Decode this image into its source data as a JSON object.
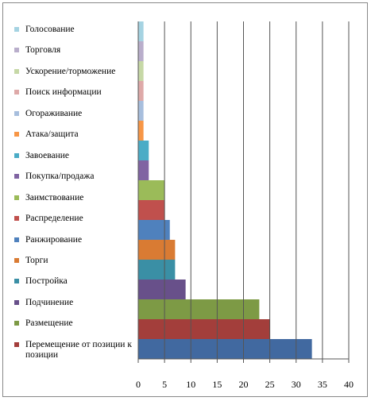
{
  "chart_data": {
    "type": "bar",
    "orientation": "horizontal",
    "bars": [
      {
        "name": "Голосование",
        "color": "#A5D3E2",
        "value": 1
      },
      {
        "name": "Торговля",
        "color": "#B9AECB",
        "value": 1
      },
      {
        "name": "Ускорение/торможение",
        "color": "#C6D8A6",
        "value": 1
      },
      {
        "name": "Поиск информации",
        "color": "#DEA9A8",
        "value": 1
      },
      {
        "name": "Огораживание",
        "color": "#A7BEDD",
        "value": 1
      },
      {
        "name": "Атака/защита",
        "color": "#F79646",
        "value": 1
      },
      {
        "name": "Завоевание",
        "color": "#4BACC6",
        "value": 2
      },
      {
        "name": "Покупка/продажа",
        "color": "#8064A2",
        "value": 2
      },
      {
        "name": "Заимствование",
        "color": "#9BBB59",
        "value": 5
      },
      {
        "name": "Распределение",
        "color": "#C0504D",
        "value": 5
      },
      {
        "name": "Ранжирование",
        "color": "#4F81BD",
        "value": 6
      },
      {
        "name": "Торги",
        "color": "#D97B33",
        "value": 7
      },
      {
        "name": "Постройка",
        "color": "#3A8FA5",
        "value": 7
      },
      {
        "name": "Подчинение",
        "color": "#68508A",
        "value": 9
      },
      {
        "name": "Размещение",
        "color": "#7D9A45",
        "value": 23
      },
      {
        "name": "Перемещение от позиции к позиции",
        "color": "#A33E3B",
        "value": 25
      },
      {
        "name": null,
        "color": "#4169A0",
        "value": 33
      }
    ],
    "xlim": [
      0,
      40
    ],
    "xticks": [
      0,
      5,
      10,
      15,
      20,
      25,
      30,
      35,
      40
    ],
    "grid": true
  }
}
